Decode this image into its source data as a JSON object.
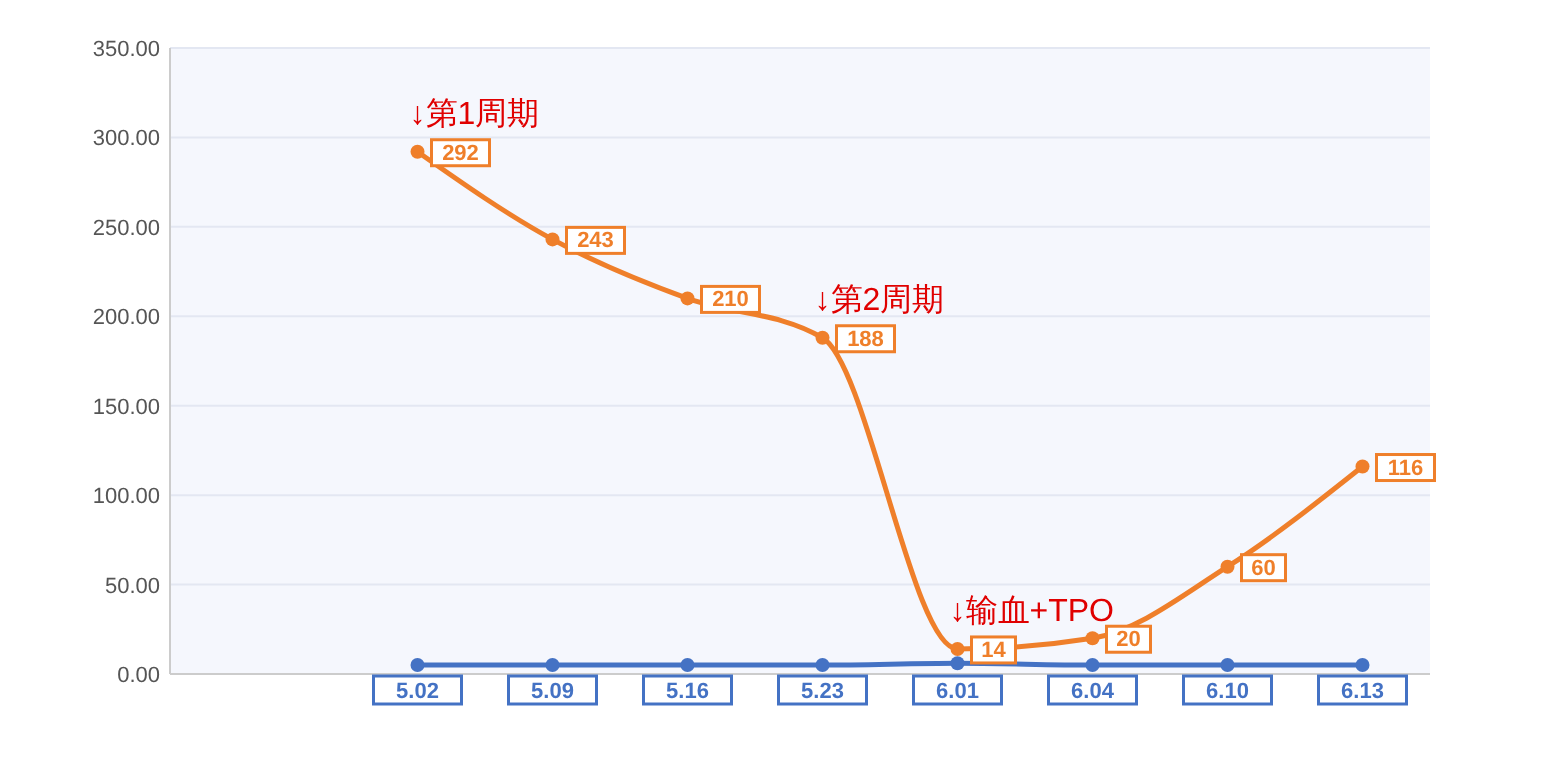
{
  "chart_data": {
    "type": "line",
    "categories": [
      "5.02",
      "5.09",
      "5.16",
      "5.23",
      "6.01",
      "6.04",
      "6.10",
      "6.13"
    ],
    "ylim": [
      0,
      350
    ],
    "yticks": [
      {
        "value": 0,
        "label": "0.00"
      },
      {
        "value": 50,
        "label": "50.00"
      },
      {
        "value": 100,
        "label": "100.00"
      },
      {
        "value": 150,
        "label": "150.00"
      },
      {
        "value": 200,
        "label": "200.00"
      },
      {
        "value": 250,
        "label": "250.00"
      },
      {
        "value": 300,
        "label": "300.00"
      },
      {
        "value": 350,
        "label": "350.00"
      }
    ],
    "grid": "y",
    "marker": "circle",
    "line_style": "solid",
    "series": [
      {
        "color": "#4472c4",
        "values": [
          5,
          5,
          5,
          5,
          6,
          5,
          5,
          5
        ]
      },
      {
        "color": "#ef7f2a",
        "values": [
          292,
          243,
          210,
          188,
          14,
          20,
          60,
          116
        ],
        "value_labels": [
          "292",
          "243",
          "210",
          "188",
          "14",
          "20",
          "60",
          "116"
        ]
      }
    ],
    "annotations": [
      {
        "text": "↓第1周期",
        "x": "5.02",
        "y": 292
      },
      {
        "text": "↓第2周期",
        "x": "5.23",
        "y": 188
      },
      {
        "text": "↓输血+TPO",
        "x": "6.01",
        "y": 14
      }
    ]
  }
}
